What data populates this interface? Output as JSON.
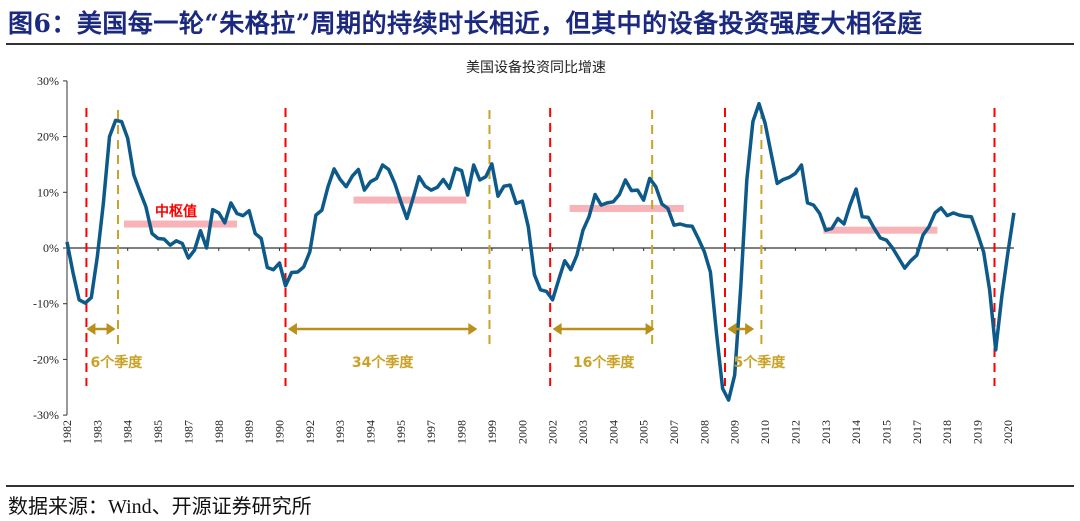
{
  "figure_title": "图6：美国每一轮“朱格拉”周期的持续时长相近，但其中的设备投资强度大相径庭",
  "source": "数据来源：Wind、开源证券研究所",
  "chart_data": {
    "type": "line",
    "title": "美国设备投资同比增速",
    "xlabel": "",
    "ylabel": "",
    "frequency": "quarterly",
    "start": "1982Q1",
    "ylim": [
      -30,
      30
    ],
    "y_ticks": [
      30,
      20,
      10,
      0,
      -10,
      -20,
      -30
    ],
    "y_tick_labels": [
      "30%",
      "20%",
      "10%",
      "0%",
      "-10%",
      "-20%",
      "-30%"
    ],
    "x_tick_labels": [
      "1982",
      "1983",
      "1984",
      "1985",
      "1987",
      "1988",
      "1989",
      "1990",
      "1992",
      "1993",
      "1994",
      "1995",
      "1997",
      "1998",
      "1999",
      "2000",
      "2002",
      "2003",
      "2004",
      "2005",
      "2007",
      "2008",
      "2009",
      "2010",
      "2012",
      "2013",
      "2014",
      "2015",
      "2017",
      "2018",
      "2019",
      "2020"
    ],
    "grid": false,
    "series_color": "#0d5a8a",
    "values": [
      1.1,
      -4.5,
      -9.3,
      -9.9,
      -8.9,
      -1.6,
      8.1,
      20.0,
      22.9,
      22.7,
      19.7,
      13.1,
      10.2,
      7.4,
      2.6,
      1.7,
      1.6,
      0.5,
      1.3,
      0.8,
      -1.8,
      -0.4,
      3.1,
      0,
      6.9,
      6.3,
      4.5,
      8.1,
      6.2,
      5.8,
      6.7,
      2.6,
      1.7,
      -3.5,
      -3.9,
      -2.7,
      -6.8,
      -4.4,
      -4.3,
      -3.4,
      -0.7,
      5.9,
      6.8,
      11.0,
      14.2,
      12.3,
      11.0,
      12.9,
      14.1,
      10.4,
      11.9,
      12.5,
      14.9,
      14.1,
      11.6,
      8.3,
      5.3,
      8.9,
      12.8,
      11.1,
      10.4,
      10.9,
      12.3,
      10.7,
      14.3,
      13.9,
      9.5,
      14.9,
      12.2,
      12.8,
      15.1,
      9.3,
      11.1,
      11.3,
      8.0,
      8.4,
      3.8,
      -4.8,
      -7.5,
      -7.8,
      -9.3,
      -5.7,
      -2.3,
      -3.9,
      -1.3,
      3.2,
      5.6,
      9.6,
      7.7,
      8.1,
      8.3,
      9.6,
      12.2,
      10.3,
      10.4,
      8.6,
      12.5,
      11.0,
      7.9,
      7.1,
      4.1,
      4.3,
      4.0,
      3.9,
      1.7,
      -0.7,
      -4.3,
      -15.3,
      -25.2,
      -27.3,
      -22.8,
      -6.9,
      12.2,
      22.7,
      25.9,
      22.4,
      17.0,
      11.6,
      12.3,
      12.7,
      13.4,
      14.9,
      8.1,
      7.7,
      6.2,
      3.2,
      3.5,
      5.3,
      4.3,
      7.7,
      10.6,
      5.6,
      5.5,
      3.5,
      1.8,
      1.4,
      0,
      -1.8,
      -3.6,
      -2.3,
      -1.3,
      2.3,
      3.8,
      6.3,
      7.2,
      5.8,
      6.3,
      5.9,
      5.7,
      5.6,
      2.6,
      -0.7,
      -7.5,
      -18.3,
      -8.7,
      -0.8,
      6.3
    ],
    "annotations": {
      "cycle_start_color": "#ff0000",
      "cycle_peak_color": "#c9a227",
      "band_color": "#f7b3b8",
      "cycle_starts": [
        1982.8,
        1991.0,
        2001.9,
        2009.1,
        2020.2
      ],
      "cycle_peaks": [
        1984.1,
        1999.4,
        2006.1,
        2010.6
      ],
      "median_label": "中枢值",
      "median_bands": [
        {
          "from": 1984.35,
          "to": 1989.0,
          "value": 4.3
        },
        {
          "from": 1993.8,
          "to": 1998.45,
          "value": 8.6
        },
        {
          "from": 2002.7,
          "to": 2007.4,
          "value": 7.1
        },
        {
          "from": 2013.15,
          "to": 2017.85,
          "value": 3.2
        }
      ],
      "durations": [
        {
          "from": 1982.8,
          "to": 1984.0,
          "label": "6个季度"
        },
        {
          "from": 1991.1,
          "to": 1998.9,
          "label": "34个季度"
        },
        {
          "from": 2002.0,
          "to": 2006.2,
          "label": "16个季度"
        },
        {
          "from": 2009.2,
          "to": 2010.3,
          "label": "5个季度"
        }
      ]
    }
  }
}
